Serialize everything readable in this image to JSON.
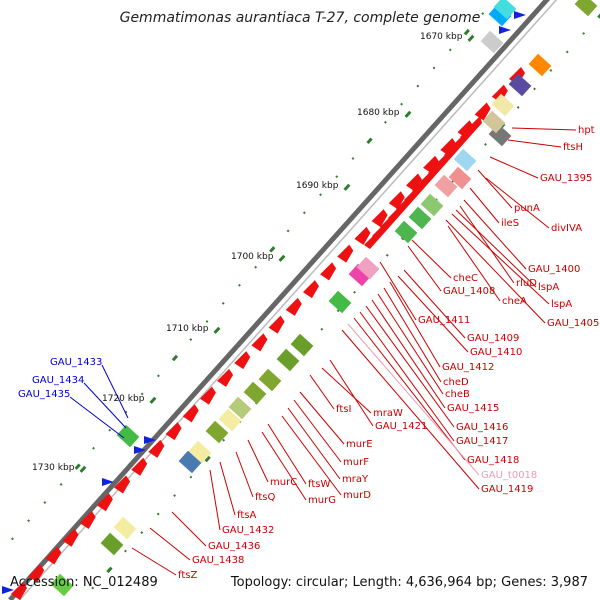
{
  "title": "Gemmatimonas aurantiaca T-27, complete genome",
  "footer": {
    "accession": "Accession: NC_012489",
    "summary": "Topology: circular; Length: 4,636,964 bp; Genes: 3,987"
  },
  "colors": {
    "forward_label": "#cc0000",
    "reverse_label": "#0000cc",
    "trna_label": "#e8a0b0",
    "tick": "#2e7d2e",
    "backbone": "#666666"
  },
  "scale_labels": [
    "1670 kbp",
    "1680 kbp",
    "1690 kbp",
    "1700 kbp",
    "1710 kbp",
    "1720 kbp",
    "1730 kbp"
  ],
  "gene_labels_right": [
    "hpt",
    "ftsH",
    "GAU_1395",
    "punA",
    "divIVA",
    "ileS",
    "GAU_1400",
    "rluD",
    "lspA",
    "lspA",
    "GAU_1405",
    "cheC",
    "GAU_1408",
    "cheA",
    "GAU_1411",
    "GAU_1409",
    "GAU_1410",
    "GAU_1412",
    "cheD",
    "cheB",
    "GAU_1415",
    "GAU_1416",
    "GAU_1417",
    "GAU_1418",
    "GAU_t0018",
    "GAU_1419",
    "ftsI",
    "mraW",
    "GAU_1421",
    "murE",
    "murF",
    "mraY",
    "murD",
    "ftsW",
    "murG",
    "murC",
    "ftsQ",
    "ftsA",
    "GAU_1432",
    "GAU_1436",
    "GAU_1438",
    "ftsZ"
  ],
  "gene_labels_left": [
    "GAU_1433",
    "GAU_1434",
    "GAU_1435"
  ]
}
